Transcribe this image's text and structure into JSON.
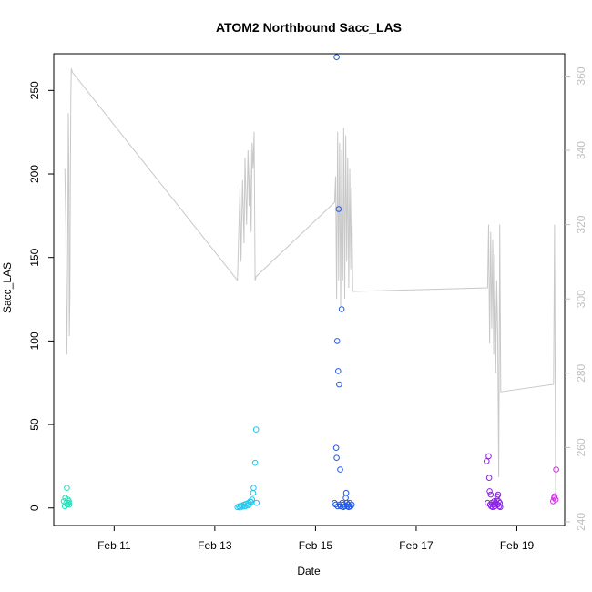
{
  "chart_data": {
    "type": "scatter",
    "title": "ATOM2 Northbound Sacc_LAS",
    "xlabel": "Date",
    "ylabel": "Sacc_LAS",
    "xlim": [
      9.8,
      19.95
    ],
    "ylim": [
      -10.5,
      272
    ],
    "y2lim": [
      239,
      366
    ],
    "x_ticks": [
      {
        "value": 11,
        "label": "Feb 11"
      },
      {
        "value": 13,
        "label": "Feb 13"
      },
      {
        "value": 15,
        "label": "Feb 15"
      },
      {
        "value": 17,
        "label": "Feb 17"
      },
      {
        "value": 19,
        "label": "Feb 19"
      }
    ],
    "y_ticks": [
      {
        "value": 0,
        "label": "0"
      },
      {
        "value": 50,
        "label": "50"
      },
      {
        "value": 100,
        "label": "100"
      },
      {
        "value": 150,
        "label": "150"
      },
      {
        "value": 200,
        "label": "200"
      },
      {
        "value": 250,
        "label": "250"
      }
    ],
    "y2_ticks": [
      {
        "value": 240,
        "label": "240"
      },
      {
        "value": 260,
        "label": "260"
      },
      {
        "value": 280,
        "label": "280"
      },
      {
        "value": 300,
        "label": "300"
      },
      {
        "value": 320,
        "label": "320"
      },
      {
        "value": 340,
        "label": "340"
      },
      {
        "value": 360,
        "label": "360"
      }
    ],
    "line_color": "#c8c8c8",
    "line_series": {
      "axis": "right",
      "points": [
        [
          10.02,
          335
        ],
        [
          10.04,
          320
        ],
        [
          10.05,
          295
        ],
        [
          10.06,
          285
        ],
        [
          10.07,
          300
        ],
        [
          10.08,
          320
        ],
        [
          10.09,
          350
        ],
        [
          10.1,
          335
        ],
        [
          10.11,
          290
        ],
        [
          10.12,
          300
        ],
        [
          10.13,
          330
        ],
        [
          10.14,
          355
        ],
        [
          10.15,
          362
        ],
        [
          10.17,
          361
        ],
        [
          13.45,
          305
        ],
        [
          13.5,
          330
        ],
        [
          13.52,
          310
        ],
        [
          13.55,
          332
        ],
        [
          13.58,
          315
        ],
        [
          13.6,
          338
        ],
        [
          13.63,
          320
        ],
        [
          13.66,
          340
        ],
        [
          13.68,
          325
        ],
        [
          13.7,
          340
        ],
        [
          13.72,
          318
        ],
        [
          13.74,
          342
        ],
        [
          13.76,
          335
        ],
        [
          13.78,
          345
        ],
        [
          13.8,
          305
        ],
        [
          13.82,
          306
        ],
        [
          15.38,
          326
        ],
        [
          15.4,
          333
        ],
        [
          15.42,
          300
        ],
        [
          15.44,
          345
        ],
        [
          15.46,
          305
        ],
        [
          15.48,
          342
        ],
        [
          15.5,
          298
        ],
        [
          15.52,
          340
        ],
        [
          15.54,
          305
        ],
        [
          15.56,
          346
        ],
        [
          15.58,
          300
        ],
        [
          15.6,
          344
        ],
        [
          15.62,
          310
        ],
        [
          15.64,
          338
        ],
        [
          15.66,
          303
        ],
        [
          15.68,
          335
        ],
        [
          15.7,
          308
        ],
        [
          15.72,
          330
        ],
        [
          15.74,
          302
        ],
        [
          18.42,
          303
        ],
        [
          18.44,
          320
        ],
        [
          18.46,
          288
        ],
        [
          18.48,
          318
        ],
        [
          18.5,
          292
        ],
        [
          18.52,
          316
        ],
        [
          18.54,
          285
        ],
        [
          18.56,
          312
        ],
        [
          18.58,
          280
        ],
        [
          18.6,
          305
        ],
        [
          18.62,
          290
        ],
        [
          18.64,
          252
        ],
        [
          18.66,
          320
        ],
        [
          18.68,
          275
        ],
        [
          19.73,
          277
        ],
        [
          19.75,
          320
        ],
        [
          19.77,
          245
        ]
      ]
    },
    "series": [
      {
        "color": "#22e0b8",
        "points": [
          [
            10.0,
            4
          ],
          [
            10.02,
            1
          ],
          [
            10.03,
            6
          ],
          [
            10.05,
            3
          ],
          [
            10.06,
            12
          ],
          [
            10.07,
            2
          ],
          [
            10.08,
            5
          ],
          [
            10.09,
            3
          ],
          [
            10.1,
            4
          ],
          [
            10.11,
            2
          ]
        ]
      },
      {
        "color": "#1ec8ee",
        "points": [
          [
            13.45,
            0.5
          ],
          [
            13.48,
            1
          ],
          [
            13.5,
            0.3
          ],
          [
            13.52,
            1.5
          ],
          [
            13.55,
            0.8
          ],
          [
            13.58,
            2
          ],
          [
            13.6,
            1
          ],
          [
            13.62,
            2.5
          ],
          [
            13.65,
            1.5
          ],
          [
            13.67,
            3
          ],
          [
            13.68,
            2
          ],
          [
            13.7,
            4
          ],
          [
            13.72,
            3.5
          ],
          [
            13.74,
            5
          ],
          [
            13.76,
            9
          ],
          [
            13.77,
            12
          ],
          [
            13.8,
            27
          ],
          [
            13.82,
            47
          ],
          [
            13.83,
            3
          ]
        ]
      },
      {
        "color": "#2458e8",
        "points": [
          [
            15.38,
            3
          ],
          [
            15.4,
            2
          ],
          [
            15.41,
            36
          ],
          [
            15.42,
            30
          ],
          [
            15.43,
            100
          ],
          [
            15.44,
            1
          ],
          [
            15.45,
            82
          ],
          [
            15.46,
            179
          ],
          [
            15.47,
            74
          ],
          [
            15.48,
            2
          ],
          [
            15.49,
            23
          ],
          [
            15.5,
            1
          ],
          [
            15.52,
            119
          ],
          [
            15.53,
            3
          ],
          [
            15.55,
            0.5
          ],
          [
            15.56,
            2
          ],
          [
            15.58,
            1
          ],
          [
            15.6,
            6
          ],
          [
            15.61,
            9
          ],
          [
            15.62,
            3
          ],
          [
            15.63,
            1
          ],
          [
            15.65,
            2
          ],
          [
            15.66,
            0.5
          ],
          [
            15.68,
            3
          ],
          [
            15.7,
            1
          ],
          [
            15.72,
            2
          ],
          [
            15.42,
            270
          ]
        ]
      },
      {
        "color": "#8a20e8",
        "points": [
          [
            18.4,
            28
          ],
          [
            18.42,
            3
          ],
          [
            18.44,
            31
          ],
          [
            18.45,
            18
          ],
          [
            18.46,
            10
          ],
          [
            18.47,
            2
          ],
          [
            18.48,
            8
          ],
          [
            18.49,
            1
          ],
          [
            18.5,
            3
          ],
          [
            18.52,
            0.5
          ],
          [
            18.54,
            2
          ],
          [
            18.55,
            4
          ],
          [
            18.56,
            1
          ],
          [
            18.58,
            3
          ],
          [
            18.6,
            5
          ],
          [
            18.61,
            7
          ],
          [
            18.62,
            2
          ],
          [
            18.63,
            8
          ],
          [
            18.64,
            4
          ],
          [
            18.65,
            1
          ],
          [
            18.66,
            3
          ],
          [
            18.67,
            0.5
          ]
        ]
      },
      {
        "color": "#d42ae8",
        "points": [
          [
            19.72,
            4
          ],
          [
            19.74,
            6
          ],
          [
            19.75,
            7
          ],
          [
            19.77,
            5
          ],
          [
            19.78,
            23
          ]
        ]
      }
    ]
  }
}
